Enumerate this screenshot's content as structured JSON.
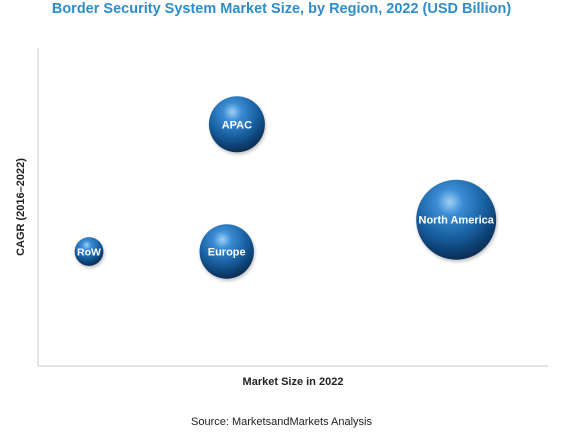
{
  "chart_data": {
    "type": "bubble",
    "title": "Border Security System Market Size, by Region, 2022 (USD Billion)",
    "xlabel": "Market Size in 2022",
    "ylabel": "CAGR (2016–2022)",
    "source": "Source: MarketsandMarkets Analysis",
    "axis_values_shown": false,
    "grid": false,
    "legend": "none",
    "bubble_color": "#1E64A8",
    "series": [
      {
        "name": "APAC",
        "x": 0.39,
        "y": 0.76,
        "size": 0.7
      },
      {
        "name": "North America",
        "x": 0.82,
        "y": 0.46,
        "size": 1.0
      },
      {
        "name": "Europe",
        "x": 0.37,
        "y": 0.36,
        "size": 0.68
      },
      {
        "name": "RoW",
        "x": 0.1,
        "y": 0.36,
        "size": 0.36
      }
    ]
  }
}
